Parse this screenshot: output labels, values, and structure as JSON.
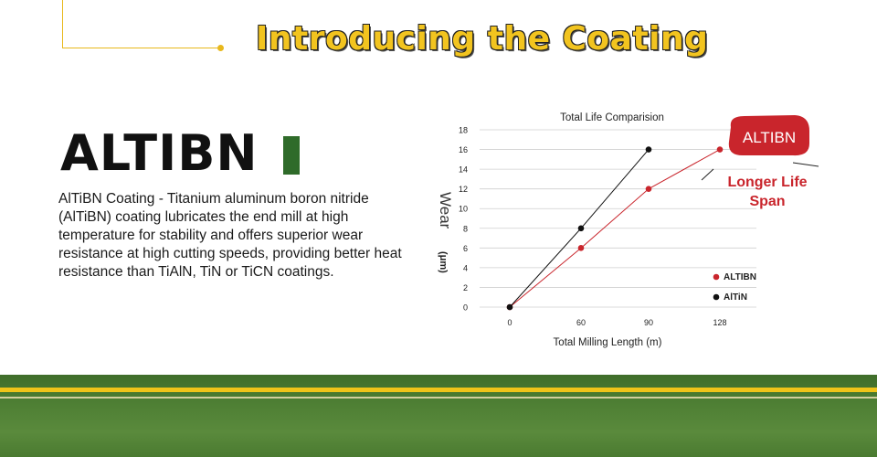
{
  "header": {
    "title": "Introducing the Coating"
  },
  "product": {
    "name": "ALTIBN",
    "description": "AlTiBN Coating - Titanium aluminum boron nitride (AlTiBN) coating lubricates the end mill at high temperature for stability and offers superior wear resistance at high cutting speeds, providing better heat resistance than TiAlN, TiN or TiCN coatings."
  },
  "colors": {
    "accent_yellow": "#f2c41f",
    "brand_green": "#2f6b2a",
    "altibn_red": "#c9252c",
    "altin_black": "#111111"
  },
  "chart_data": {
    "type": "line",
    "title": "Total Life Comparision",
    "xlabel": "Total Milling Length  (m)",
    "ylabel": "Wear",
    "ylabel_unit": "(μm)",
    "categories": [
      "0",
      "60",
      "90",
      "128"
    ],
    "x": [
      0,
      60,
      90,
      128
    ],
    "yticks": [
      0,
      2,
      4,
      6,
      8,
      10,
      12,
      14,
      16,
      18
    ],
    "ylim": [
      0,
      18
    ],
    "grid": true,
    "legend_position": "bottom-right",
    "series": [
      {
        "name": "ALTIBN",
        "color": "#c9252c",
        "x": [
          0,
          60,
          90,
          128
        ],
        "values": [
          0,
          6,
          12,
          16
        ]
      },
      {
        "name": "AlTiN",
        "color": "#111111",
        "x": [
          0,
          60,
          90
        ],
        "values": [
          0,
          8,
          16
        ]
      }
    ],
    "annotation": {
      "badge": "ALTIBN",
      "text_line1": "Longer Life",
      "text_line2": "Span"
    }
  }
}
